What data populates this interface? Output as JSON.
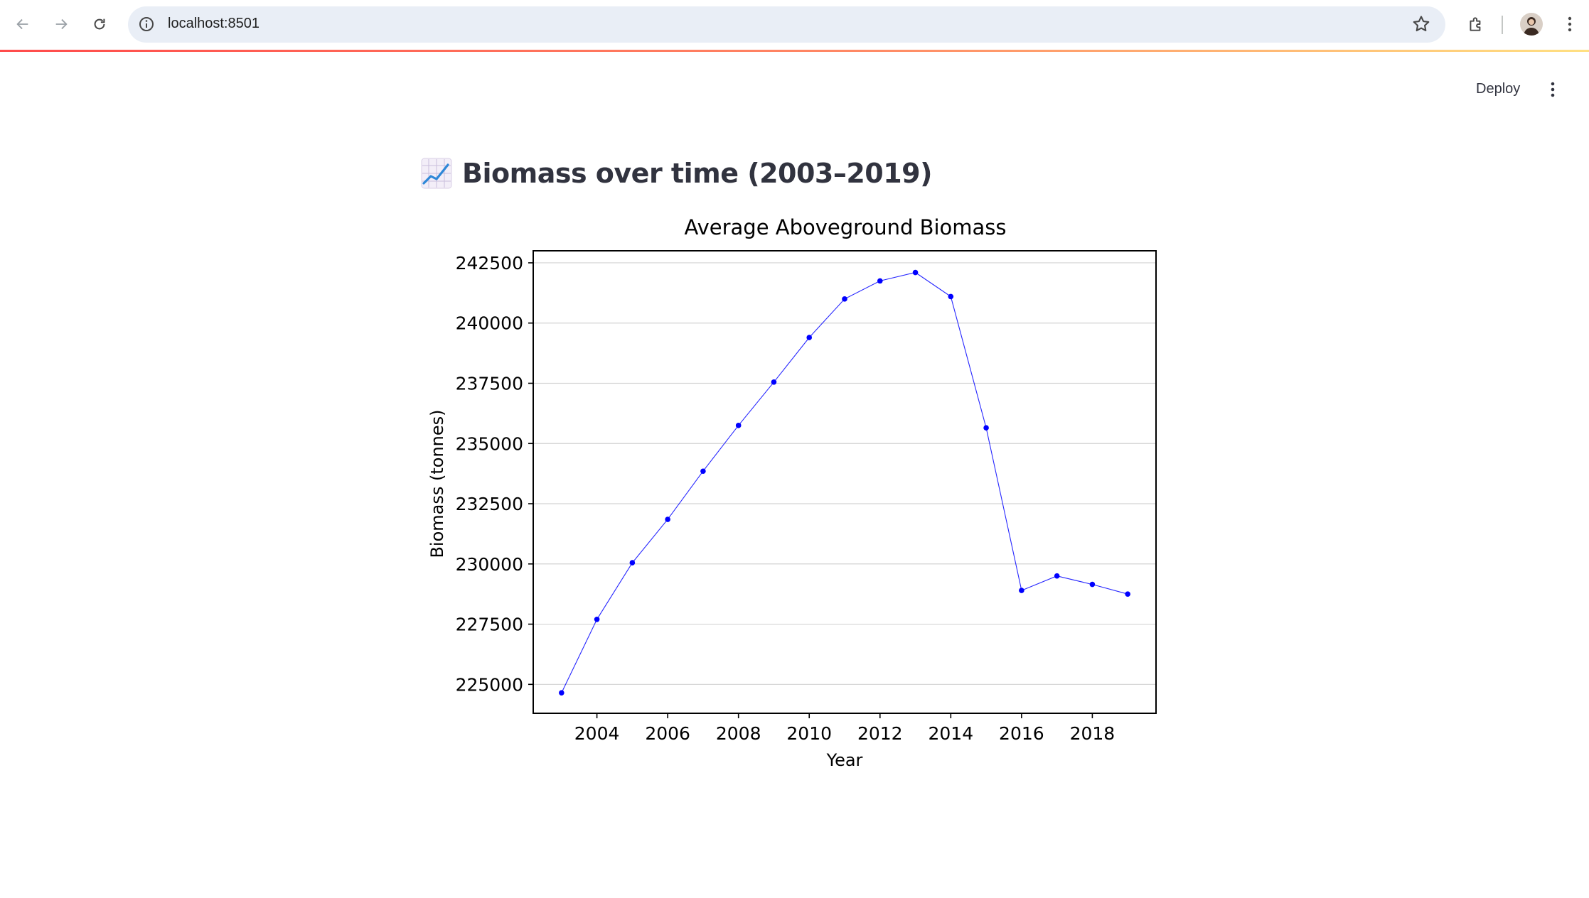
{
  "browser": {
    "url": "localhost:8501"
  },
  "app": {
    "deploy_label": "Deploy",
    "title": "Biomass over time (2003–2019)",
    "title_icon": "chart-increasing-icon"
  },
  "colors": {
    "accent_gradient": [
      "#ff4b4b",
      "#ff8a65",
      "#ffe082"
    ],
    "series": "#0000ff",
    "text": "#31333f"
  },
  "chart_data": {
    "type": "line",
    "title": "Average Aboveground Biomass",
    "xlabel": "Year",
    "ylabel": "Biomass (tonnes)",
    "x": [
      2003,
      2004,
      2005,
      2006,
      2007,
      2008,
      2009,
      2010,
      2011,
      2012,
      2013,
      2014,
      2015,
      2016,
      2017,
      2018,
      2019
    ],
    "values": [
      224650,
      227700,
      230050,
      231850,
      233850,
      235750,
      237550,
      239400,
      241000,
      241750,
      242100,
      241100,
      235650,
      228900,
      229500,
      229150,
      228750
    ],
    "xticks": [
      2004,
      2006,
      2008,
      2010,
      2012,
      2014,
      2016,
      2018
    ],
    "yticks": [
      225000,
      227500,
      230000,
      232500,
      235000,
      237500,
      240000,
      242500
    ],
    "xlim": [
      2002.2,
      2019.8
    ],
    "ylim": [
      223800,
      243000
    ],
    "grid": "y",
    "legend": "none"
  }
}
